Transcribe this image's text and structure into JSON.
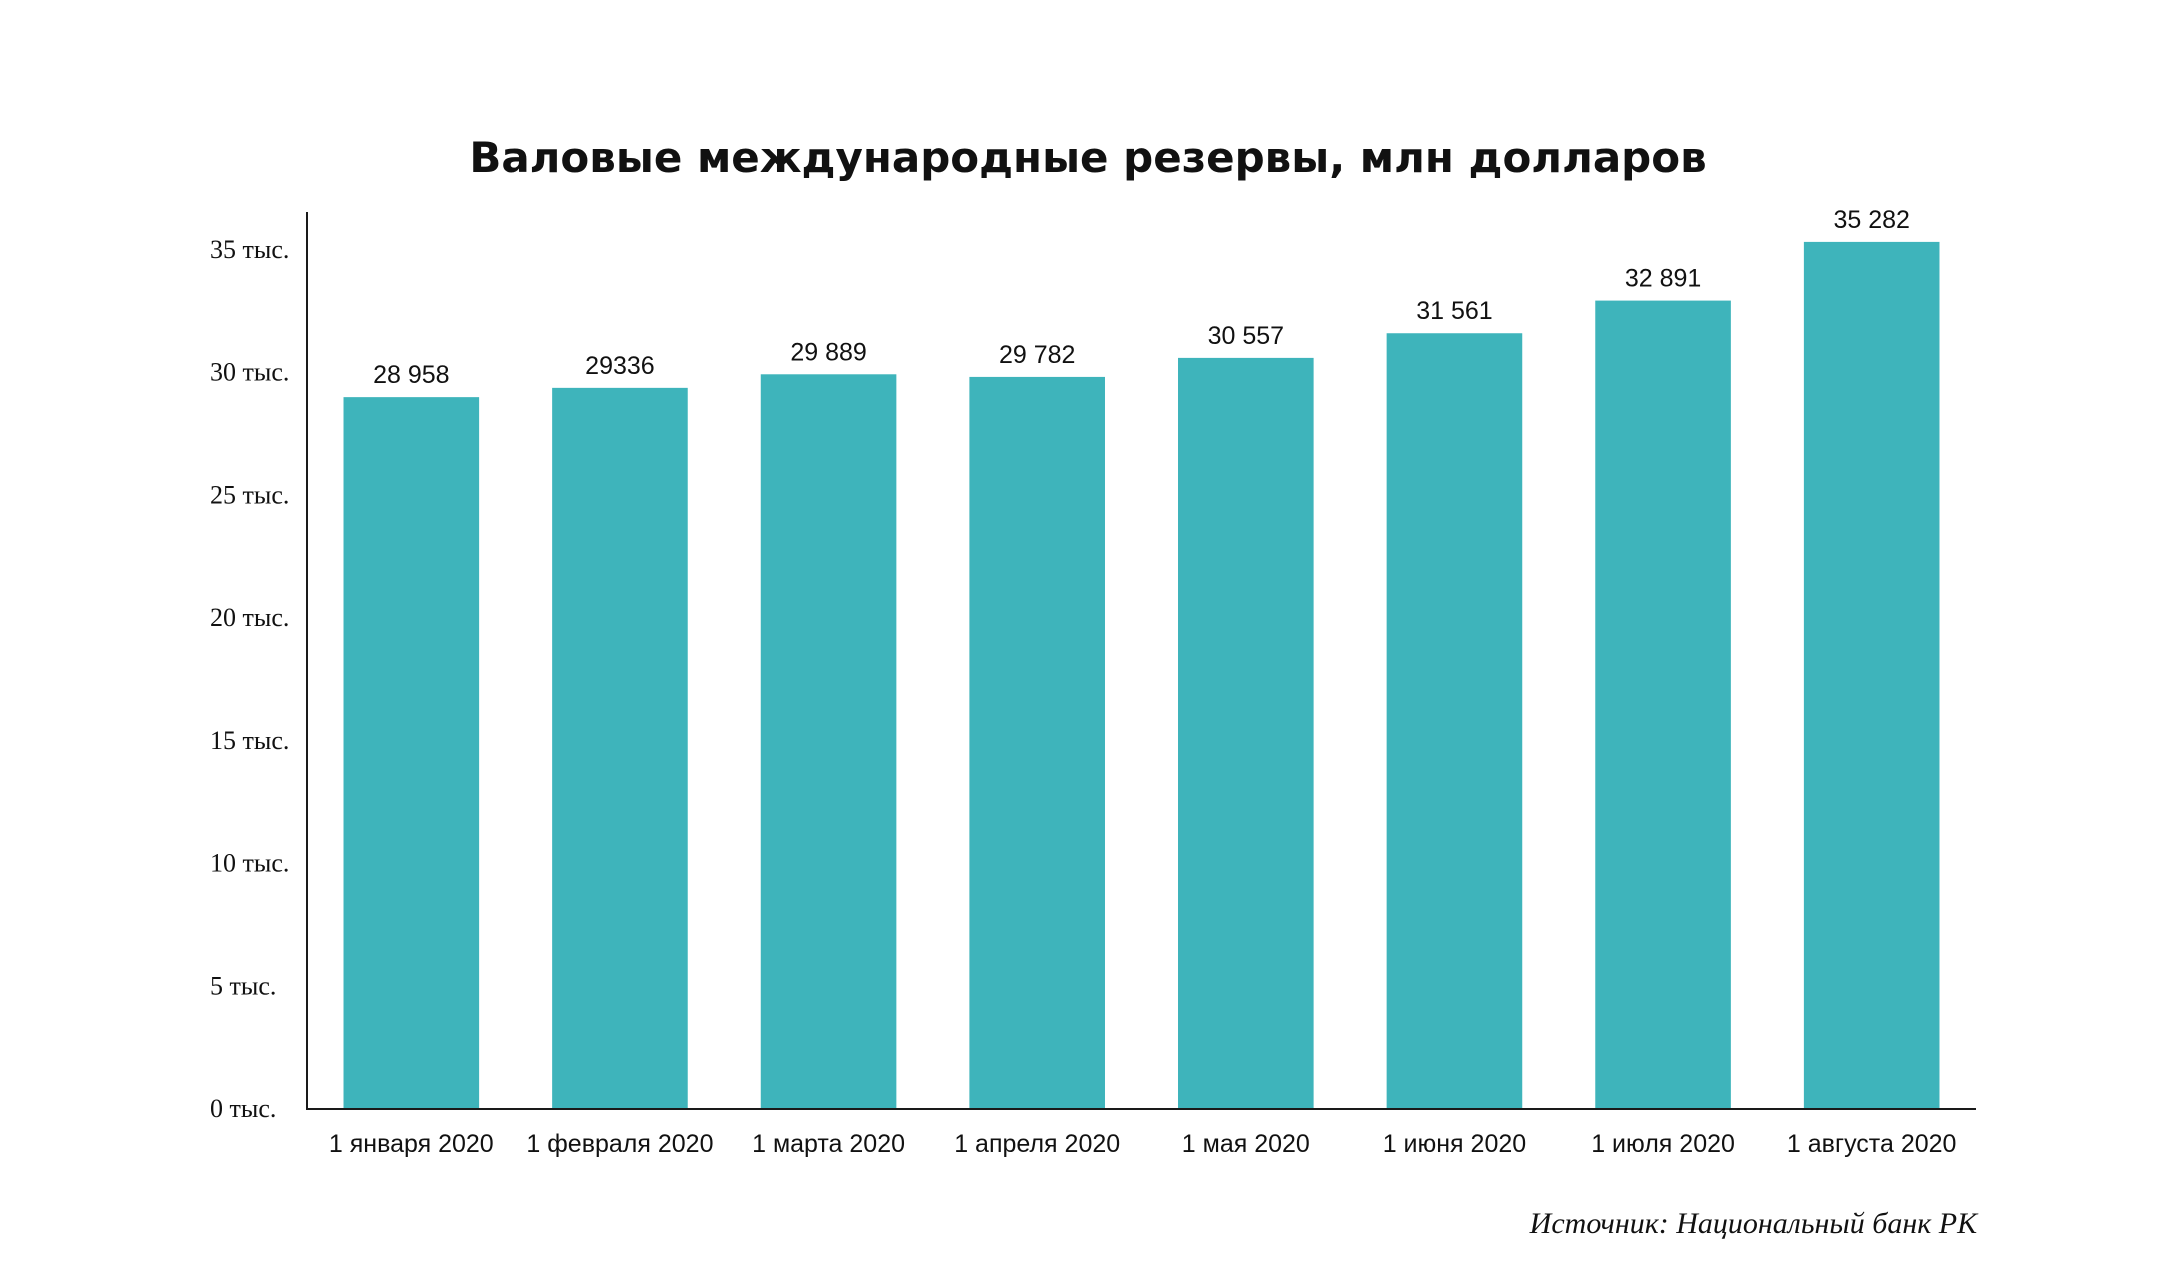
{
  "chart_data": {
    "type": "bar",
    "title": "Валовые международные резервы, млн долларов",
    "xlabel": "",
    "ylabel": "",
    "categories": [
      "1 января 2020",
      "1 февраля 2020",
      "1 марта 2020",
      "1 апреля 2020",
      "1 мая 2020",
      "1 июня 2020",
      "1 июля 2020",
      "1 августа 2020"
    ],
    "values": [
      28958,
      29336,
      29889,
      29782,
      30557,
      31561,
      32891,
      35282
    ],
    "data_labels": [
      "28 958",
      "29336",
      "29 889",
      "29 782",
      "30 557",
      "31 561",
      "32 891",
      "35 282"
    ],
    "ylim": [
      0,
      36500
    ],
    "y_ticks": [
      0,
      5000,
      10000,
      15000,
      20000,
      25000,
      30000,
      35000
    ],
    "y_tick_labels": [
      "0 тыс.",
      "5 тыс.",
      "10 тыс.",
      "15 тыс.",
      "20 тыс.",
      "25 тыс.",
      "30 тыс.",
      "35 тыс."
    ],
    "grid": false,
    "legend": "none",
    "bar_color": "#3eb4bb",
    "source": "Источник: Национальный банк РК"
  }
}
